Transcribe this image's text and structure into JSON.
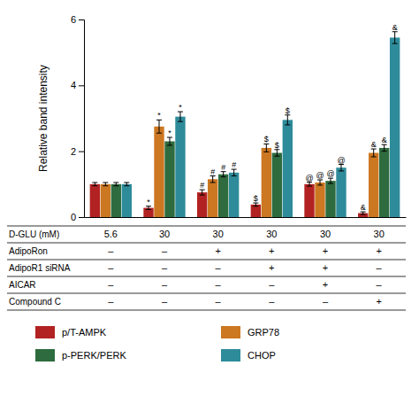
{
  "chart_data": {
    "type": "bar",
    "ylabel": "Relative band intensity",
    "categories": [
      null,
      null,
      null,
      null,
      null,
      null
    ],
    "tick_labels": "y",
    "ylim": [
      0,
      6
    ],
    "yticks": [
      0,
      2,
      4,
      6
    ],
    "series": [
      {
        "name": "p/T-AMPK",
        "color": "#b22222",
        "values": [
          1.0,
          0.28,
          0.75,
          0.38,
          1.0,
          0.12
        ],
        "errors": [
          0.05,
          0.05,
          0.08,
          0.05,
          0.06,
          0.04
        ],
        "annotations": [
          null,
          "*",
          "#",
          "$",
          "@",
          "&"
        ]
      },
      {
        "name": "GRP78",
        "color": "#cc7722",
        "values": [
          1.0,
          2.75,
          1.15,
          2.1,
          1.05,
          1.95
        ],
        "errors": [
          0.05,
          0.2,
          0.1,
          0.12,
          0.08,
          0.12
        ],
        "annotations": [
          null,
          "*",
          "#",
          "$",
          "@",
          "&"
        ]
      },
      {
        "name": "p-PERK/PERK",
        "color": "#2e6b3e",
        "values": [
          1.0,
          2.3,
          1.3,
          1.95,
          1.1,
          2.1
        ],
        "errors": [
          0.05,
          0.12,
          0.08,
          0.1,
          0.08,
          0.1
        ],
        "annotations": [
          null,
          "*",
          "#",
          "$",
          "@",
          "&"
        ]
      },
      {
        "name": "CHOP",
        "color": "#2e8b9a",
        "values": [
          1.0,
          3.05,
          1.35,
          2.95,
          1.5,
          5.45
        ],
        "errors": [
          0.05,
          0.15,
          0.1,
          0.15,
          0.1,
          0.18
        ],
        "annotations": [
          null,
          "*",
          "#",
          "$",
          "@",
          "&"
        ]
      }
    ],
    "table": [
      [
        "D-GLU (mM)",
        "5.6",
        "30",
        "30",
        "30",
        "30",
        "30"
      ],
      [
        "AdipoRon",
        "–",
        "–",
        "+",
        "+",
        "+",
        "+"
      ],
      [
        "AdipoR1 siRNA",
        "–",
        "–",
        "–",
        "+",
        "+",
        "–"
      ],
      [
        "AICAR",
        "–",
        "–",
        "–",
        "–",
        "+",
        "–"
      ],
      [
        "Compound C",
        "–",
        "–",
        "–",
        "–",
        "–",
        "+"
      ]
    ]
  }
}
